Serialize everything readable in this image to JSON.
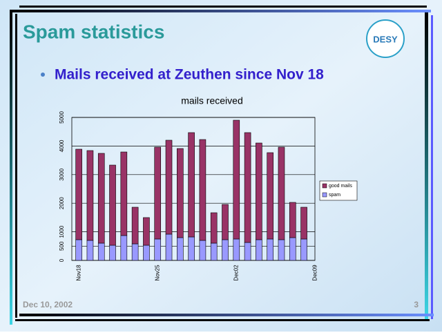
{
  "slide": {
    "title": "Spam statistics",
    "bullet": "Mails received at Zeuthen since Nov 18",
    "logo": "DESY",
    "date": "Dec 10, 2002",
    "page": "3"
  },
  "chart_data": {
    "type": "bar",
    "stacked": true,
    "title": "mails received",
    "categories": [
      "Nov18",
      null,
      null,
      null,
      null,
      null,
      null,
      "Nov25",
      null,
      null,
      null,
      null,
      null,
      null,
      "Dec02",
      null,
      null,
      null,
      null,
      null,
      null,
      "Dec09"
    ],
    "series": [
      {
        "name": "spam",
        "color": "#9999ff",
        "values": [
          725,
          700,
          604,
          531,
          870,
          580,
          531,
          749,
          918,
          797,
          821,
          700,
          604,
          725,
          749,
          628,
          725,
          749,
          725,
          797,
          749,
          null
        ]
      },
      {
        "name": "good mails",
        "color": "#993366",
        "values": [
          3164,
          3141,
          3140,
          2802,
          2922,
          1280,
          967,
          3212,
          3285,
          3116,
          3648,
          3527,
          1063,
          1232,
          4154,
          3841,
          3381,
          3019,
          3236,
          1232,
          1111,
          null
        ]
      }
    ],
    "ylim": [
      0,
      5000
    ],
    "yticks": [
      0,
      500,
      1000,
      2000,
      3000,
      4000,
      5000
    ],
    "grid": true,
    "legend": "right"
  }
}
